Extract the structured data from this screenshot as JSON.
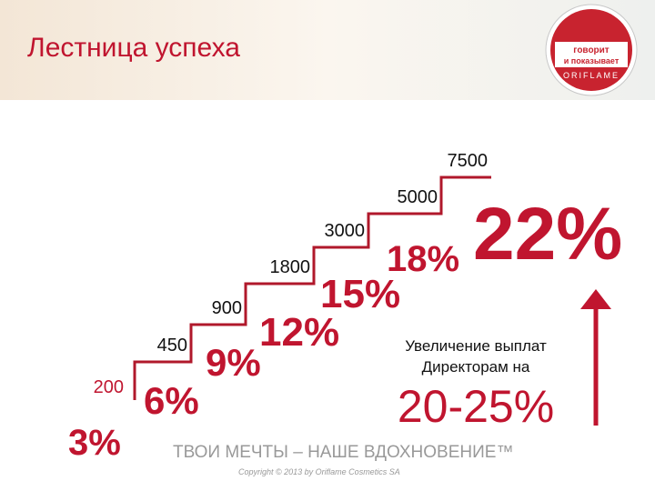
{
  "header": {
    "title": "Лестница успеха",
    "logo": {
      "line1": "говорит",
      "line2": "и показывает",
      "brand": "ORIFLAME"
    }
  },
  "steps": [
    {
      "threshold": "200",
      "percent": "3%"
    },
    {
      "threshold": "450",
      "percent": "6%"
    },
    {
      "threshold": "900",
      "percent": "9%"
    },
    {
      "threshold": "1800",
      "percent": "12%"
    },
    {
      "threshold": "3000",
      "percent": "15%"
    },
    {
      "threshold": "5000",
      "percent": "18%"
    },
    {
      "threshold": "7500",
      "percent": "22%"
    }
  ],
  "note": {
    "line1": "Увеличение выплат",
    "line2": "Директорам на",
    "range": "20-25%"
  },
  "footer": {
    "slogan": "ТВОИ МЕЧТЫ – НАШЕ ВДОХНОВЕНИЕ™",
    "copyright": "Copyright © 2013 by Oriflame Cosmetics SA"
  }
}
